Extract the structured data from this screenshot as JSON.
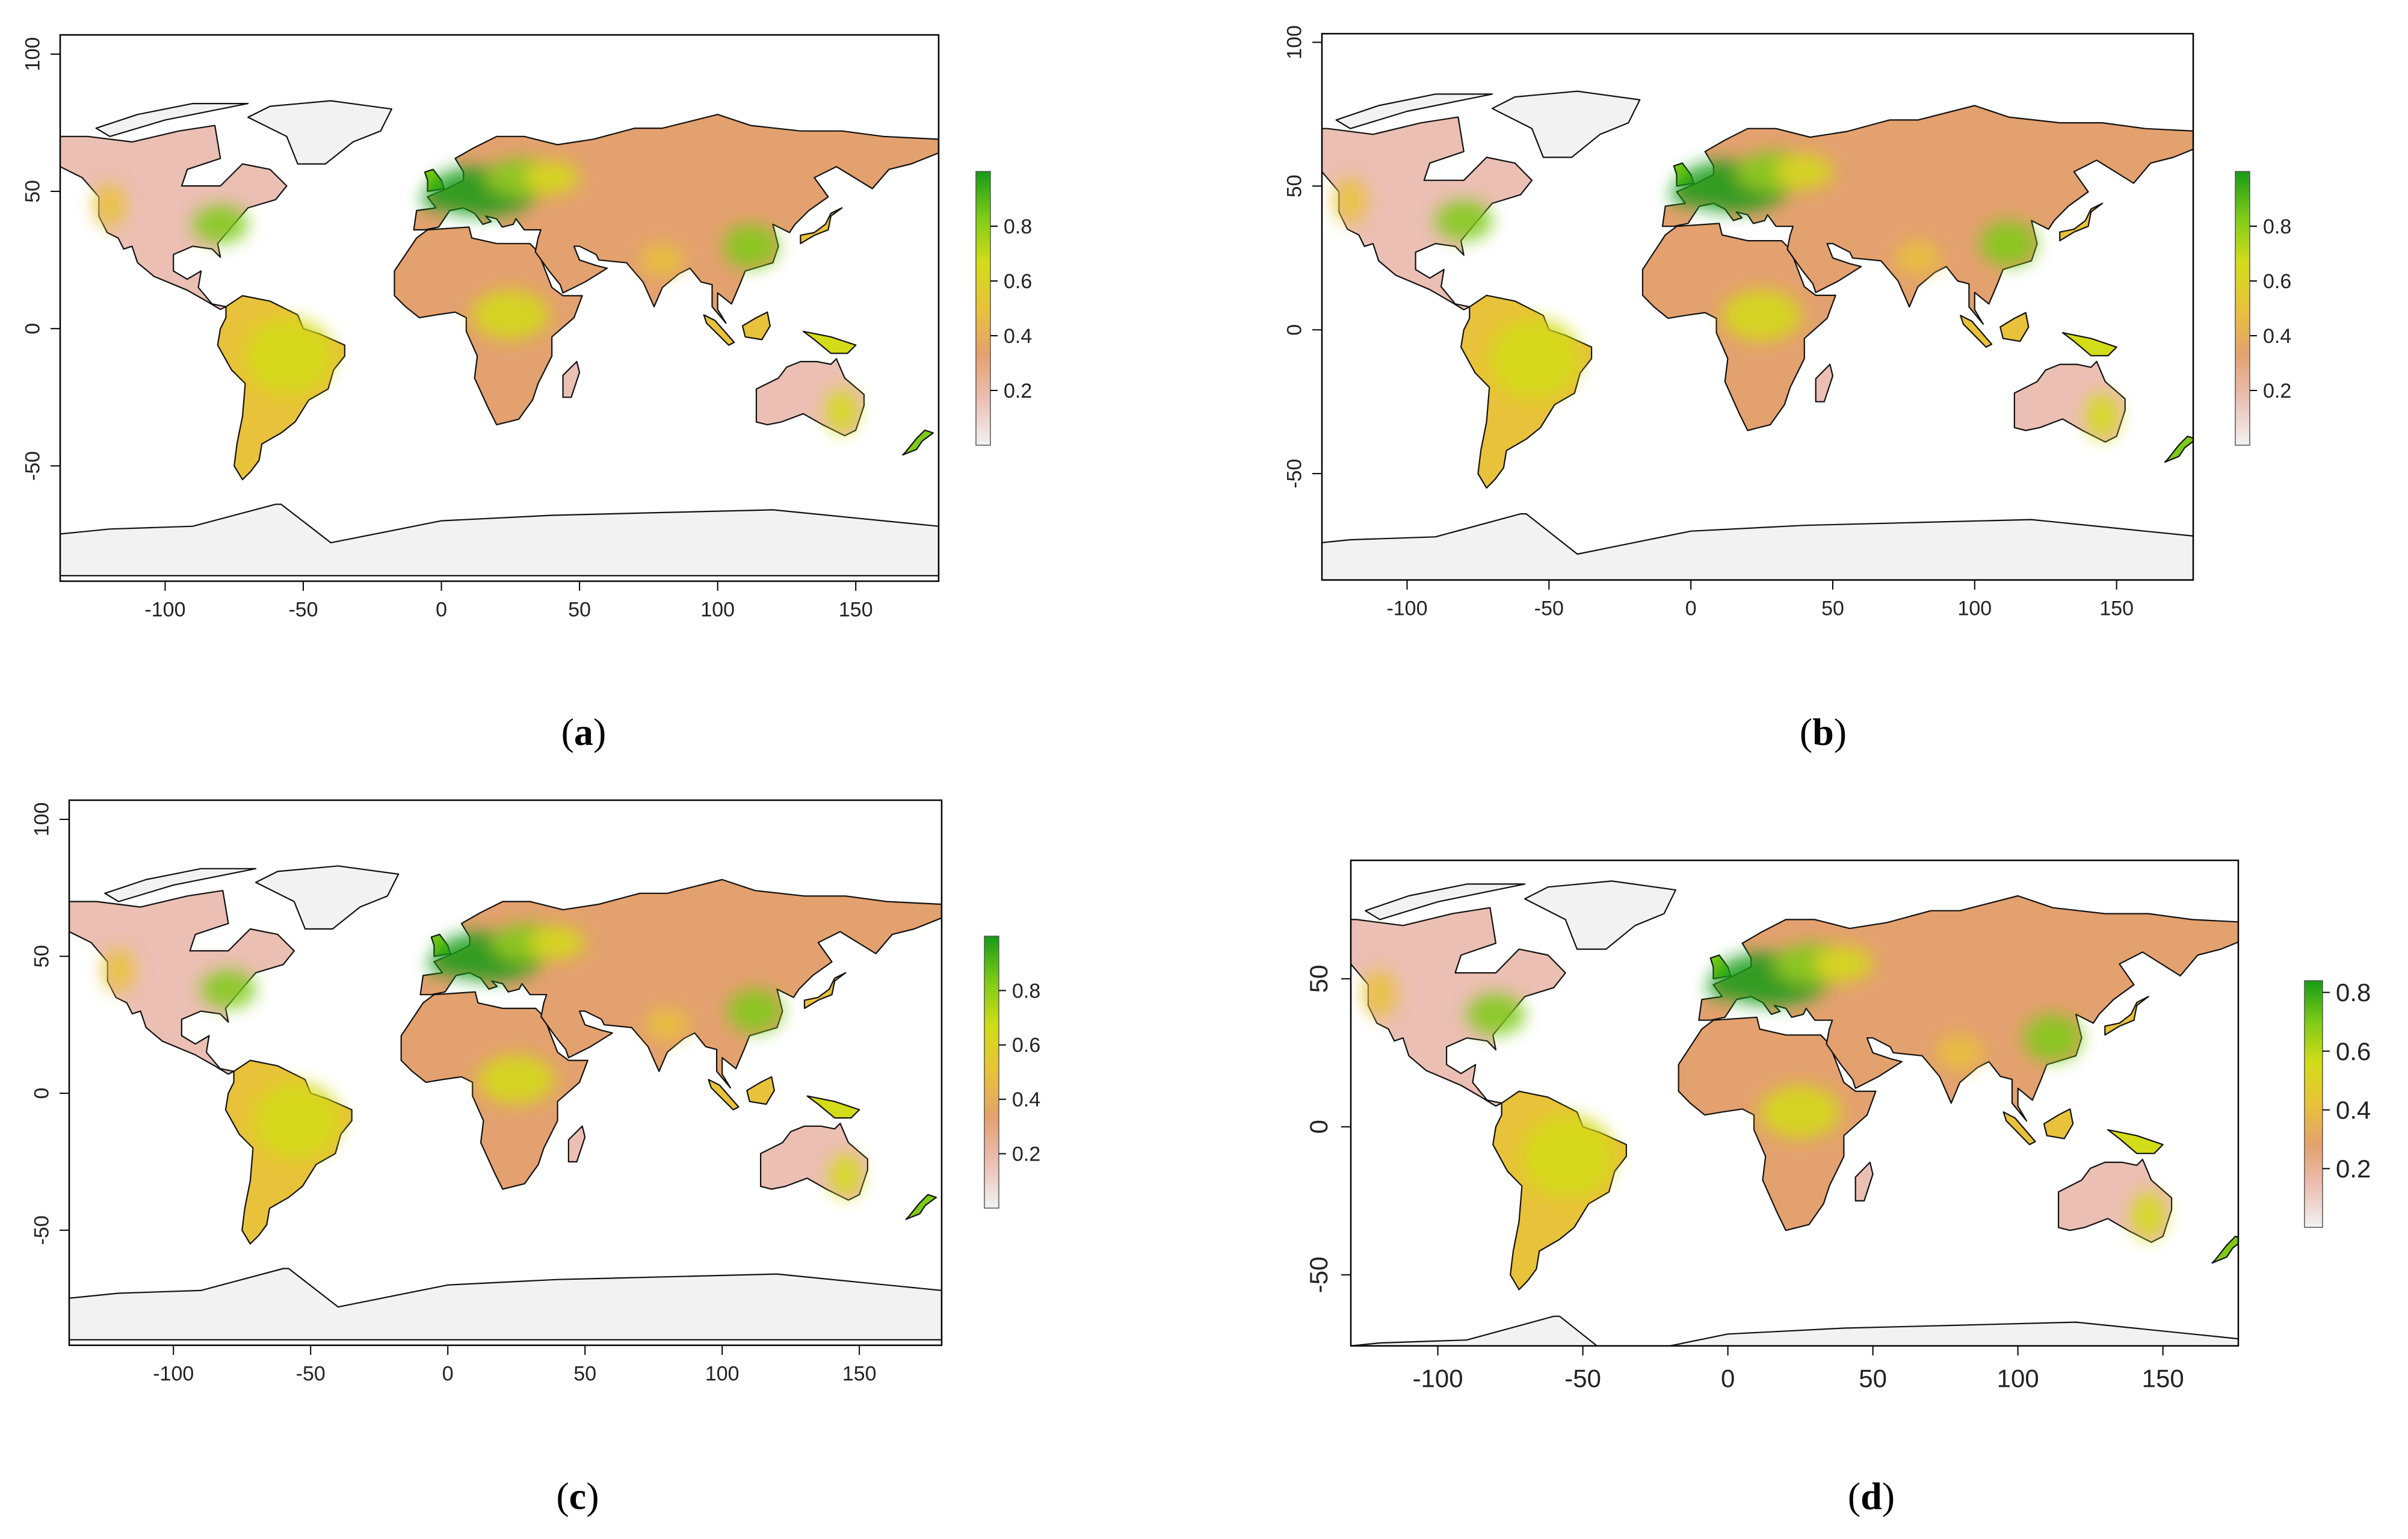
{
  "figure": {
    "panels": [
      {
        "id": "a",
        "caption": "a",
        "xlim": [
          -138,
          180
        ],
        "ylim": [
          -92,
          107
        ],
        "x_ticks": [
          "-100",
          "-50",
          "0",
          "50",
          "100",
          "150"
        ],
        "x_tick_values": [
          -100,
          -50,
          0,
          50,
          100,
          150
        ],
        "y_ticks": [
          "-50",
          "0",
          "50",
          "100"
        ],
        "y_tick_values": [
          -50,
          0,
          50,
          100
        ],
        "legend_ticks": [
          "0.2",
          "0.4",
          "0.6",
          "0.8"
        ],
        "legend_tick_values": [
          0.2,
          0.4,
          0.6,
          0.8
        ],
        "legend_range": [
          0,
          1.0
        ]
      },
      {
        "id": "b",
        "caption": "b",
        "xlim": [
          -130,
          177
        ],
        "ylim": [
          -87,
          103
        ],
        "x_ticks": [
          "-100",
          "-50",
          "0",
          "50",
          "100",
          "150"
        ],
        "x_tick_values": [
          -100,
          -50,
          0,
          50,
          100,
          150
        ],
        "y_ticks": [
          "-50",
          "0",
          "50",
          "100"
        ],
        "y_tick_values": [
          -50,
          0,
          50,
          100
        ],
        "legend_ticks": [
          "0.2",
          "0.4",
          "0.6",
          "0.8"
        ],
        "legend_tick_values": [
          0.2,
          0.4,
          0.6,
          0.8
        ],
        "legend_range": [
          0,
          1.0
        ]
      },
      {
        "id": "c",
        "caption": "c",
        "xlim": [
          -138,
          180
        ],
        "ylim": [
          -92,
          107
        ],
        "x_ticks": [
          "-100",
          "-50",
          "0",
          "50",
          "100",
          "150"
        ],
        "x_tick_values": [
          -100,
          -50,
          0,
          50,
          100,
          150
        ],
        "y_ticks": [
          "-50",
          "0",
          "50",
          "100"
        ],
        "y_tick_values": [
          -50,
          0,
          50,
          100
        ],
        "legend_ticks": [
          "0.2",
          "0.4",
          "0.6",
          "0.8"
        ],
        "legend_tick_values": [
          0.2,
          0.4,
          0.6,
          0.8
        ],
        "legend_range": [
          0,
          1.0
        ]
      },
      {
        "id": "d",
        "caption": "d",
        "xlim": [
          -130,
          176
        ],
        "ylim": [
          -74,
          90
        ],
        "x_ticks": [
          "-100",
          "-50",
          "0",
          "50",
          "100",
          "150"
        ],
        "x_tick_values": [
          -100,
          -50,
          0,
          50,
          100,
          150
        ],
        "y_ticks": [
          "-50",
          "0",
          "50"
        ],
        "y_tick_values": [
          -50,
          0,
          50
        ],
        "legend_ticks": [
          "0.2",
          "0.4",
          "0.6",
          "0.8"
        ],
        "legend_tick_values": [
          0.2,
          0.4,
          0.6,
          0.8
        ],
        "legend_range": [
          0,
          0.84
        ]
      }
    ],
    "colorscale": [
      "#f2f2f2",
      "#ebbfb3",
      "#e3a16f",
      "#e8c23a",
      "#d3dc19",
      "#7ecb17",
      "#179b17"
    ]
  },
  "chart_data": [
    {
      "type": "heatmap",
      "title": "",
      "xlabel": "",
      "ylabel": "",
      "xlim": [
        -138,
        180
      ],
      "ylim": [
        -92,
        107
      ],
      "colorbar_ticks": [
        0.2,
        0.4,
        0.6,
        0.8
      ],
      "grid": false,
      "legend_position": "right"
    },
    {
      "type": "heatmap",
      "title": "",
      "xlabel": "",
      "ylabel": "",
      "xlim": [
        -130,
        177
      ],
      "ylim": [
        -87,
        103
      ],
      "colorbar_ticks": [
        0.2,
        0.4,
        0.6,
        0.8
      ],
      "grid": false,
      "legend_position": "right"
    },
    {
      "type": "heatmap",
      "title": "",
      "xlabel": "",
      "ylabel": "",
      "xlim": [
        -138,
        180
      ],
      "ylim": [
        -92,
        107
      ],
      "colorbar_ticks": [
        0.2,
        0.4,
        0.6,
        0.8
      ],
      "grid": false,
      "legend_position": "right"
    },
    {
      "type": "heatmap",
      "title": "",
      "xlabel": "",
      "ylabel": "",
      "xlim": [
        -130,
        176
      ],
      "ylim": [
        -74,
        90
      ],
      "colorbar_ticks": [
        0.2,
        0.4,
        0.6,
        0.8
      ],
      "grid": false,
      "legend_position": "right"
    }
  ]
}
